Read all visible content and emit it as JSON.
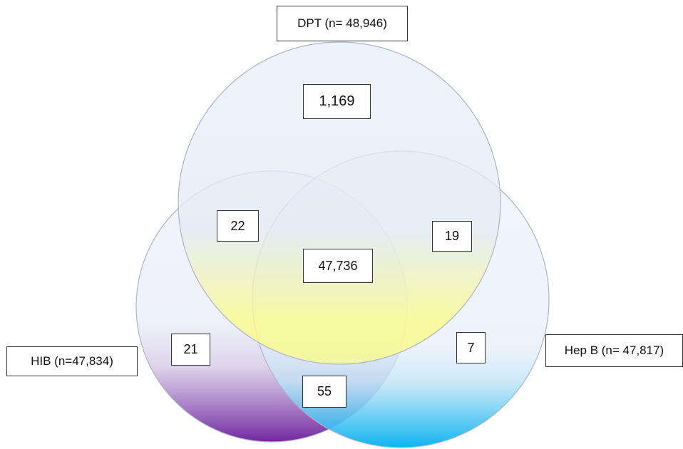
{
  "sets": {
    "dpt": {
      "label": "DPT (n= 48,946)",
      "color": "#fbfb8c"
    },
    "hib": {
      "label": "HIB (n=47,834)",
      "color": "#6a1b9a"
    },
    "hepb": {
      "label": "Hep B (n= 47,817)",
      "color": "#00b0f0"
    }
  },
  "regions": {
    "dpt_only": "1,169",
    "dpt_hib": "22",
    "dpt_hepb": "19",
    "all_three": "47,736",
    "hib_only": "21",
    "hepb_only": "7",
    "hib_hepb": "55"
  },
  "circle_fill": "#e6ecfa",
  "circle_stroke": "#a9b5cc"
}
